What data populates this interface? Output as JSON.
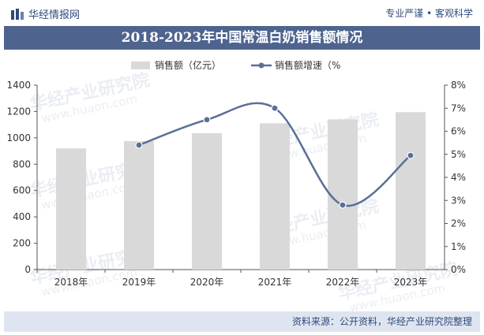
{
  "header": {
    "brand": "华经情报网",
    "slogan": "专业严谨 • 客观科学"
  },
  "title": "2018-2023年中国常温白奶销售额情况",
  "source": "资料来源：公开资料，华经产业研究院整理",
  "watermark": {
    "cn": "华经产业研究院",
    "url": "www.huaon.com"
  },
  "colors": {
    "bar": "#d9d9d9",
    "line": "#5b6f97",
    "title_bg": "#4e648f",
    "footer_bg": "#dfe5f0"
  },
  "chart_data": {
    "type": "bar+line",
    "categories": [
      "2018年",
      "2019年",
      "2020年",
      "2021年",
      "2022年",
      "2023年"
    ],
    "series": [
      {
        "name": "销售额（亿元）",
        "type": "bar",
        "axis": "left",
        "values": [
          920,
          975,
          1035,
          1110,
          1140,
          1195
        ]
      },
      {
        "name": "销售额增速（%",
        "type": "line",
        "axis": "right",
        "values": [
          null,
          5.4,
          6.5,
          7.0,
          2.8,
          4.95
        ]
      }
    ],
    "left_axis": {
      "min": 0,
      "max": 1400,
      "step": 200,
      "tick_labels": [
        "0",
        "200",
        "400",
        "600",
        "800",
        "1000",
        "1200",
        "1400"
      ]
    },
    "right_axis": {
      "min": 0,
      "max": 8,
      "step": 1,
      "tick_labels": [
        "0%",
        "1%",
        "2%",
        "3%",
        "4%",
        "5%",
        "6%",
        "7%",
        "8%"
      ]
    },
    "legend_position": "top"
  }
}
